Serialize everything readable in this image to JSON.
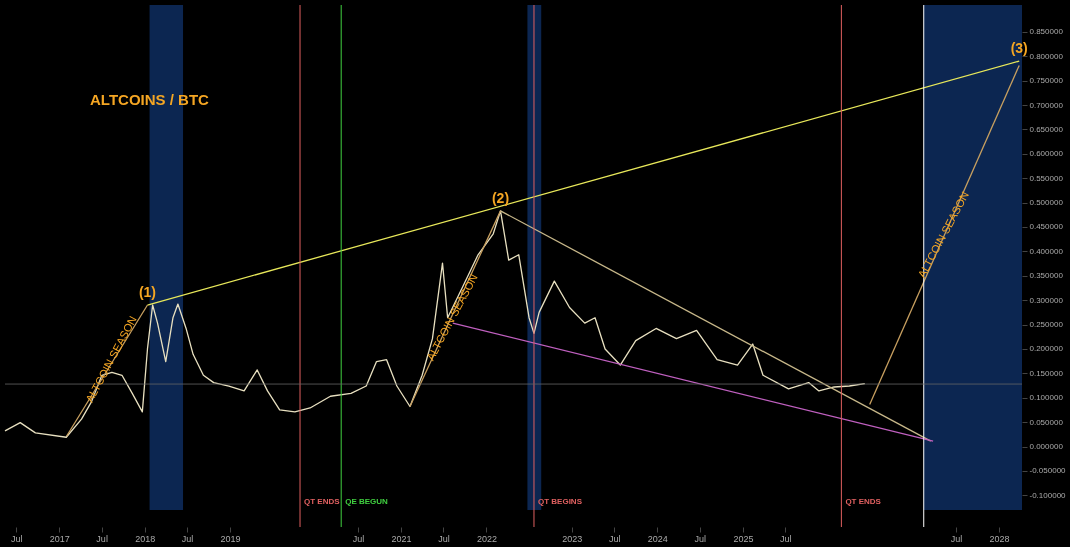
{
  "chart_data": {
    "type": "line",
    "title": "ALTCOINS / BTC",
    "series": [
      {
        "color": "#e8e0c0",
        "x": [
          "2016-05-14",
          "2016-07-18",
          "2016-09-21",
          "2017-01-31",
          "2017-04-06",
          "2017-05-19",
          "2017-07-02",
          "2017-08-14",
          "2017-09-26",
          "2017-11-09",
          "2017-12-22",
          "2018-01-13",
          "2018-02-04",
          "2018-02-25",
          "2018-04-01",
          "2018-05-02",
          "2018-05-23",
          "2018-06-27",
          "2018-07-27",
          "2018-09-09",
          "2018-10-23",
          "2018-12-27",
          "2019-03-02",
          "2019-04-27",
          "2019-06-10",
          "2019-08-01",
          "2019-10-05",
          "2019-12-09",
          "2020-03-05",
          "2020-06-01",
          "2020-08-05",
          "2020-09-18",
          "2020-10-31",
          "2020-12-14",
          "2021-02-08",
          "2021-04-01",
          "2021-05-15",
          "2021-06-27",
          "2021-07-19",
          "2021-09-22",
          "2021-11-26",
          "2022-01-30",
          "2022-03-02",
          "2022-04-06",
          "2022-05-19",
          "2022-07-02",
          "2022-07-23",
          "2022-08-14",
          "2022-10-18",
          "2022-12-22",
          "2023-02-25",
          "2023-04-10",
          "2023-05-23",
          "2023-07-27",
          "2023-10-01",
          "2023-12-27",
          "2024-03-23",
          "2024-06-17",
          "2024-09-13",
          "2024-12-09",
          "2025-02-12",
          "2025-03-28",
          "2025-07-15",
          "2025-10-09",
          "2025-11-22",
          "2026-01-26",
          "2026-04-01",
          "2026-06-06"
        ],
        "values": [
          0.032,
          0.049,
          0.028,
          0.019,
          0.056,
          0.092,
          0.146,
          0.152,
          0.146,
          0.109,
          0.071,
          0.2,
          0.29,
          0.253,
          0.174,
          0.264,
          0.292,
          0.242,
          0.189,
          0.146,
          0.131,
          0.124,
          0.114,
          0.157,
          0.114,
          0.075,
          0.071,
          0.079,
          0.103,
          0.109,
          0.124,
          0.174,
          0.178,
          0.124,
          0.082,
          0.146,
          0.221,
          0.376,
          0.264,
          0.328,
          0.393,
          0.436,
          0.483,
          0.382,
          0.393,
          0.264,
          0.232,
          0.275,
          0.339,
          0.285,
          0.253,
          0.264,
          0.2,
          0.167,
          0.217,
          0.242,
          0.221,
          0.238,
          0.178,
          0.167,
          0.21,
          0.146,
          0.118,
          0.131,
          0.114,
          0.122,
          0.124,
          0.129
        ]
      },
      {
        "color": "#e8e85a",
        "x": [
          "2018-01-13",
          "2028-03-27"
        ],
        "values": [
          0.29,
          0.79
        ]
      },
      {
        "color": "#c8b88a",
        "x": [
          "2022-03-02",
          "2027-03-15"
        ],
        "values": [
          0.483,
          0.011
        ]
      },
      {
        "color": "#c060c0",
        "x": [
          "2021-08-10",
          "2027-03-25"
        ],
        "values": [
          0.253,
          0.011
        ]
      },
      {
        "color": "#c8a060",
        "x": [
          "2017-02-01",
          "2018-01-13"
        ],
        "values": [
          0.021,
          0.29
        ]
      },
      {
        "color": "#c8a060",
        "x": [
          "2021-02-08",
          "2022-03-02"
        ],
        "values": [
          0.082,
          0.483
        ]
      },
      {
        "color": "#c8a060",
        "x": [
          "2026-06-27",
          "2028-03-27"
        ],
        "values": [
          0.086,
          0.781
        ]
      }
    ],
    "xlim": [
      "2016-05-14",
      "2028-04-08"
    ],
    "xticks": [
      {
        "value": "2016-07-01",
        "label": "Jul"
      },
      {
        "value": "2017-01-01",
        "label": "2017"
      },
      {
        "value": "2017-07-01",
        "label": "Jul"
      },
      {
        "value": "2018-01-01",
        "label": "2018"
      },
      {
        "value": "2018-07-01",
        "label": "Jul"
      },
      {
        "value": "2019-01-01",
        "label": "2019"
      },
      {
        "value": "2020-07-01",
        "label": "Jul"
      },
      {
        "value": "2021-01-01",
        "label": "2021"
      },
      {
        "value": "2021-07-01",
        "label": "Jul"
      },
      {
        "value": "2022-01-01",
        "label": "2022"
      },
      {
        "value": "2023-01-01",
        "label": "2023"
      },
      {
        "value": "2023-07-01",
        "label": "Jul"
      },
      {
        "value": "2024-01-01",
        "label": "2024"
      },
      {
        "value": "2024-07-01",
        "label": "Jul"
      },
      {
        "value": "2025-01-01",
        "label": "2025"
      },
      {
        "value": "2025-07-01",
        "label": "Jul"
      },
      {
        "value": "2027-07-01",
        "label": "Jul"
      },
      {
        "value": "2028-01-01",
        "label": "2028"
      }
    ],
    "ylim": [
      -0.165,
      0.905
    ],
    "yticks": [
      {
        "value": 0.85,
        "label": "0.850000"
      },
      {
        "value": 0.8,
        "label": "0.800000"
      },
      {
        "value": 0.75,
        "label": "0.750000"
      },
      {
        "value": 0.7,
        "label": "0.700000"
      },
      {
        "value": 0.65,
        "label": "0.650000"
      },
      {
        "value": 0.6,
        "label": "0.600000"
      },
      {
        "value": 0.55,
        "label": "0.550000"
      },
      {
        "value": 0.5,
        "label": "0.500000"
      },
      {
        "value": 0.45,
        "label": "0.450000"
      },
      {
        "value": 0.4,
        "label": "0.400000"
      },
      {
        "value": 0.35,
        "label": "0.350000"
      },
      {
        "value": 0.3,
        "label": "0.300000"
      },
      {
        "value": 0.25,
        "label": "0.250000"
      },
      {
        "value": 0.2,
        "label": "0.200000"
      },
      {
        "value": 0.15,
        "label": "0.150000"
      },
      {
        "value": 0.1,
        "label": "0.100000"
      },
      {
        "value": 0.05,
        "label": "0.050000"
      },
      {
        "value": 0,
        "label": "0.000000"
      },
      {
        "value": -0.05,
        "label": "-0.050000"
      },
      {
        "value": -0.1,
        "label": "-0.100000"
      }
    ],
    "bands": [
      {
        "axis": "x",
        "from": "2018-01-22",
        "to": "2018-06-14",
        "color": "#0d2a5a"
      },
      {
        "axis": "x",
        "from": "2022-06-25",
        "to": "2022-08-23",
        "color": "#0d2a5a"
      },
      {
        "axis": "x",
        "from": "2027-02-13",
        "to": "2028-04-08",
        "color": "#0d2a5a"
      }
    ],
    "ref_lines": [
      {
        "axis": "x",
        "value": "2019-10-27",
        "label": "QT ENDS",
        "color": "#e06060"
      },
      {
        "axis": "x",
        "value": "2020-04-20",
        "label": "QE BEGUN",
        "color": "#40d040"
      },
      {
        "axis": "x",
        "value": "2022-07-23",
        "label": "QT BEGINS",
        "color": "#e06060"
      },
      {
        "axis": "x",
        "value": "2026-02-26",
        "label": "QT ENDS",
        "color": "#e06060"
      },
      {
        "axis": "x",
        "value": "2027-02-13",
        "color": "#ffffff"
      },
      {
        "axis": "y",
        "value": 0.128,
        "color": "#666666"
      }
    ],
    "annotations": [
      {
        "text": "(1)",
        "x": "2018-01-13",
        "y": 0.29
      },
      {
        "text": "(2)",
        "x": "2022-03-02",
        "y": 0.483
      },
      {
        "text": "(3)",
        "x": "2028-03-27",
        "y": 0.79
      },
      {
        "text": "ALTCOIN SEASON",
        "x": "2017-08-14",
        "y": 0.178
      },
      {
        "text": "ALTCOIN SEASON",
        "x": "2021-08-10",
        "y": 0.264
      },
      {
        "text": "ALTCOIN SEASON",
        "x": "2027-05-11",
        "y": 0.4335
      }
    ]
  }
}
